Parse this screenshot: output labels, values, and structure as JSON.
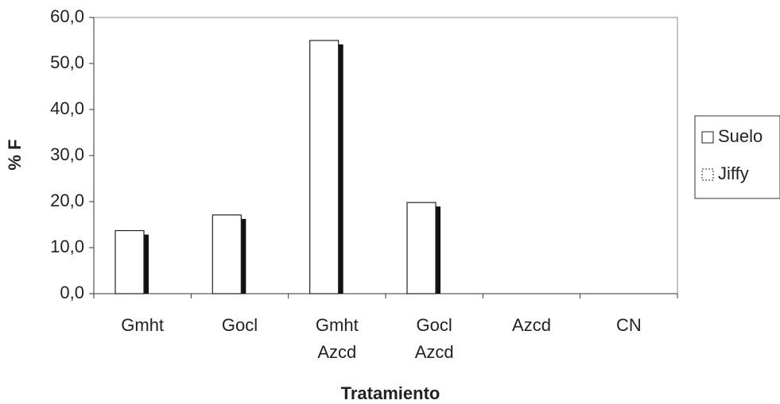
{
  "chart_data": {
    "type": "bar",
    "y_label": "% F",
    "x_label": "Tratamiento",
    "categories": [
      "Gmht",
      "Gocl",
      "Gmht\nAzcd",
      "Gocl\nAzcd",
      "Azcd",
      "CN"
    ],
    "series": [
      {
        "name": "Suelo",
        "color": "#ffffff",
        "values": [
          13.7,
          17.1,
          55.0,
          19.8,
          0,
          0
        ]
      },
      {
        "name": "Jiffy",
        "color": "#ffffff",
        "values": [
          0,
          0,
          0,
          0,
          0,
          0
        ]
      }
    ],
    "ylim": [
      0,
      60
    ],
    "yticks": [
      {
        "value": 0,
        "label": "0,0"
      },
      {
        "value": 10,
        "label": "10,0"
      },
      {
        "value": 20,
        "label": "20,0"
      },
      {
        "value": 30,
        "label": "30,0"
      },
      {
        "value": 40,
        "label": "40,0"
      },
      {
        "value": 50,
        "label": "50,0"
      },
      {
        "value": 60,
        "label": "60,0"
      }
    ],
    "legend": "right"
  }
}
